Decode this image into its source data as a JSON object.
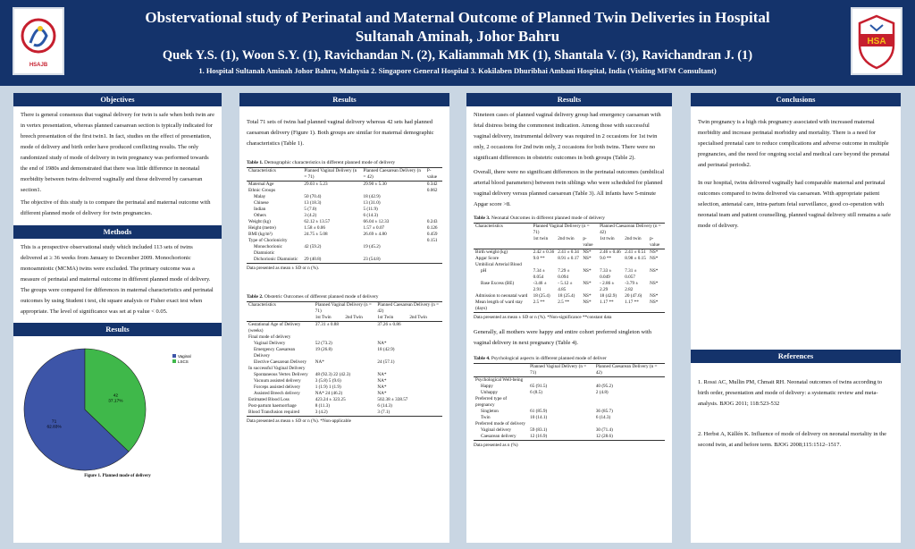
{
  "header": {
    "title_line1": "Obstervational study of Perinatal and Maternal Outcome of Planned Twin Deliveries in Hospital",
    "title_line2": "Sultanah Aminah, Johor Bahru",
    "authors": "Quek Y.S. (1), Woon S.Y. (1), Ravichandan N. (2), Kaliammah MK (1), Shantala V. (3), Ravichandran J. (1)",
    "affiliations": "1. Hospital Sultanah Aminah Johor Bahru, Malaysia   2. Singapore General Hospital   3. Kokilaben Dhuribhai Ambani Hospital, India (Visiting MFM Consultant)",
    "logo_left_text": "HSAJB",
    "logo_right_text": "HSA"
  },
  "objectives": {
    "heading": "Objectives",
    "para1": "There is general consensus that vaginal delivery for twin is safe when both twin are in vertex presentation, whereas planned caesarean section is typically indicated for breech presentation of the first twin1. In fact, studies on the effect of presentation, mode of delivery and birth order have produced conflicting results. The only randomized study of mode of delivery in twin pregnancy was performed towards the end of 1980s and demonstrated that there was little difference in neonatal morbidity between twins delivered vaginally and those delivered by caesarean section1.",
    "para2": "The objective of this study is to compare the perinatal and maternal outcome with different planned mode of delivery for twin pregnancies."
  },
  "methods": {
    "heading": "Methods",
    "para1": "This is a prospective observational study which included 113 sets of twins delivered at ≥ 36 weeks from January to December 2009. Monochorionic monoamniotic (MCMA) twins were excluded. The primary outcome was a measure of perinatal and maternal outcome in different planned mode of delivery.",
    "para2": "The groups were compared for differences in maternal characteristics and perinatal outcomes by using Student t test, chi square analysis or Fisher exact test when appropriate. The level of significance was set at p value < 0.05."
  },
  "results_left": {
    "heading": "Results",
    "figure_caption": "Figure 1. Planned mode of delivery",
    "legend": [
      "Vaginal",
      "LSCS"
    ]
  },
  "chart_data": {
    "type": "pie",
    "categories": [
      "Vaginal",
      "LSCS"
    ],
    "values": [
      71,
      42
    ],
    "labels": [
      "71\n62.83%",
      "42\n37.17%"
    ],
    "colors": [
      "#3d55a8",
      "#3fb84a"
    ]
  },
  "results1": {
    "heading": "Results",
    "intro": "Total 71 sets of twins had planned vaginal delivery whereas 42 sets had planned caesarean delivery (Figure 1). Both groups are similar for maternal demographic characteristics (Table 1).",
    "table1": {
      "caption_bold": "Table 1.",
      "caption": " Demographic characteristics in different planned mode of delivery",
      "head": [
        "Characteristics",
        "Planned Vaginal Delivery (n = 71)",
        "Planned Caesarean Delivery (n = 42)",
        "P-value"
      ],
      "rows": [
        [
          "Maternal Age",
          "29.03 ± 5.23",
          "29.90 ± 5.30",
          "0.342",
          false
        ],
        [
          "Ethnic Groups",
          "",
          "",
          "0.062",
          false
        ],
        [
          "Malay",
          "50 (70.4)",
          "18 (42.9)",
          "",
          true
        ],
        [
          "Chinese",
          "13 (18.3)",
          "13 (31.0)",
          "",
          true
        ],
        [
          "Indian",
          "5 (7.0)",
          "5 (11.9)",
          "",
          true
        ],
        [
          "Others",
          "3 (4.2)",
          "6 (14.3)",
          "",
          true
        ],
        [
          "Weight (kg)",
          "62.12 ± 13.57",
          "66.04 ± 12.33",
          "0.243",
          false
        ],
        [
          "Height (metre)",
          "1.58 ± 0.06",
          "1.57 ± 0.07",
          "0.126",
          false
        ],
        [
          "BMI (kg/m²)",
          "24.75 ± 5.08",
          "26.69 ± 4.80",
          "0.459",
          false
        ],
        [
          "Type of Chorionicity",
          "",
          "",
          "0.151",
          false
        ],
        [
          "Monochorionic Diamniotic",
          "42 (59.2)",
          "19 (45.2)",
          "",
          true
        ],
        [
          "Dichorionic Diamniotic",
          "29 (40.8)",
          "23 (54.8)",
          "",
          true
        ]
      ],
      "note": "Data presented as mean ± SD or n (%)."
    },
    "table2": {
      "caption_bold": "Table 2.",
      "caption": " Obstetric Outcomes of different planned mode of delivery",
      "head": [
        "Characteristics",
        "Planned Vaginal Delivery (n = 71)",
        "Planned Caesarean Delivery (n = 42)"
      ],
      "subhead": [
        "1st Twin",
        "2nd Twin",
        "1st Twin",
        "2nd Twin"
      ],
      "rows": [
        [
          "Gestational Age of Delivery (weeks)",
          "37.31 ± 0.88",
          "37.26 ± 0.86",
          false
        ],
        [
          "Final mode of delivery",
          "",
          "",
          false
        ],
        [
          "Vaginal Delivery",
          "52 (73.2)",
          "NA*",
          true
        ],
        [
          "Emergency Caesarean Delivery",
          "19 (26.8)",
          "18 (42.9)",
          true
        ],
        [
          "Elective Caesarean Delivery",
          "NA*",
          "24 (57.1)",
          true
        ],
        [
          "In successful Vaginal Delivery",
          "",
          "",
          false
        ],
        [
          "Spontaneous Vertex Delivery",
          "48 (92.3)     22 (42.3)",
          "NA*",
          true
        ],
        [
          "Vacuum assisted delivery",
          "3 (5.8)       5 (9.6)",
          "NA*",
          true
        ],
        [
          "Forceps assisted delivery",
          "1 (1.9)       1 (1.9)",
          "NA*",
          true
        ],
        [
          "Assisted Breech delivery",
          "NA*         24 (46.2)",
          "NA*",
          true
        ],
        [
          "Estimated Blood Loss",
          "423.24 ± 323.25",
          "502.38 ± 338.57",
          false
        ],
        [
          "Post-partum haemorrhage",
          "8 (11.3)",
          "6 (14.3)",
          false
        ],
        [
          "Blood Transfusion required",
          "3 (4.2)",
          "3 (7.1)",
          false
        ]
      ],
      "note": "Data presented as mean ± SD or n (%).      *Non-applicable"
    }
  },
  "results2": {
    "heading": "Results",
    "para1": "Nineteen cases of planned vaginal delivery group had emergency caesarean with fetal distress being the commonest indication. Among those with successful vaginal delivery, instrumental delivery was required in 2 occasions for 1st twin only, 2 occasions for 2nd twin only, 2 occasions for both twins. There were no significant differences in obstetric outcomes in both groups (Table 2).",
    "para2": "Overall, there were no significant differences in the perinatal outcomes (umbilical arterial blood parameters) between twin siblings who were scheduled for planned vaginal delivery versus planned caesarean (Table 3). All infants have 5-minute Apgar score >8.",
    "table3": {
      "caption_bold": "Table 3.",
      "caption": " Neonatal Outcomes in different planned mode of delivery",
      "head": [
        "Characteristics",
        "Planned Vaginal Delivery (n = 71)",
        "Planned Caesarean Delivery (n = 42)"
      ],
      "subhead": [
        "1st twin",
        "2nd twin",
        "p-value",
        "1st twin",
        "2nd twin",
        "p-value"
      ],
      "rows": [
        [
          "Birth weight (kg)",
          "2.42 ± 0.36",
          "2.41 ± 0.34",
          "NS*",
          "2.46 ± 0.46",
          "2.41 ± 0.51",
          "NS*",
          false
        ],
        [
          "Apgar Score",
          "9.0 **",
          "8.91 ± 0.17",
          "NS*",
          "9.0 **",
          "8.98 ± 0.15",
          "NS*",
          false
        ],
        [
          "Umbilical Arterial Blood",
          "",
          "",
          "",
          "",
          "",
          "",
          false
        ],
        [
          "pH",
          "7.34 ± 0.054",
          "7.29 ± 0.094",
          "NS*",
          "7.33 ± 0.049",
          "7.31 ± 0.057",
          "NS*",
          true
        ],
        [
          "Base Excess (BE)",
          "-3.46 ± 2.91",
          "- 5.12 ± 4.85",
          "NS*",
          "- 2.86 ± 2.29",
          "-3.79 ± 2.82",
          "NS*",
          true
        ],
        [
          "Admission to neonatal ward",
          "18 (25.4)",
          "18 (25.4)",
          "NS*",
          "18 (42.9)",
          "20 (47.6)",
          "NS*",
          false
        ],
        [
          "Mean length of ward stay (days)",
          "2.5 **",
          "2.5 **",
          "NS*",
          "1.17 **",
          "1.17 **",
          "NS*",
          false
        ]
      ],
      "note": "Data presented as mean ± SD or n (%).     *Non-significance                **constant data"
    },
    "para3": "Generally, all mothers were happy and entire cohort preferred singleton with vaginal delivery in next pregnancy (Table 4).",
    "table4": {
      "caption_bold": "Table 4.",
      "caption": " Psychological aspects in different planned mode of deliver",
      "head": [
        "",
        "Planned Vaginal Delivery (n = 71)",
        "Planned Caesarean Delivery (n = 42)"
      ],
      "rows": [
        [
          "Psychological Well-being",
          "",
          "",
          false
        ],
        [
          "Happy",
          "65 (91.5)",
          "40 (95.2)",
          true
        ],
        [
          "Unhappy",
          "6 (8.5)",
          "2 (4.8)",
          true
        ],
        [
          "Preferred type of pregnancy",
          "",
          "",
          false
        ],
        [
          "Singleton",
          "61 (85.9)",
          "36 (85.7)",
          true
        ],
        [
          "Twin",
          "10 (14.1)",
          "6 (14.3)",
          true
        ],
        [
          "Preferred mode of delivery",
          "",
          "",
          false
        ],
        [
          "Vaginal delivery",
          "59 (83.1)",
          "30 (71.4)",
          true
        ],
        [
          "Caesarean delivery",
          "12 (16.9)",
          "12 (28.6)",
          true
        ]
      ],
      "note": "Data presented as n (%)"
    }
  },
  "conclusions": {
    "heading": "Conclusions",
    "para1": "Twin pregnancy is a high risk pregnancy associated with increased maternal morbidity and increase perinatal morbidity and mortality. There is a need for specialised prenatal care to reduce complications and adverse outcome in multiple pregnancies, and the need for ongoing social and medical care beyond the prenatal and perinatal periods2.",
    "para2": "In our hospital, twins delivered vaginally had comparable maternal and perinatal outcomes compared to twins delivered via caesarean. With appropriate patient selection, antenatal care, intra-partum fetal surveillance, good co-operation with neonatal team and patient counselling, planned vaginal delivery still remains a safe mode of delivery."
  },
  "references": {
    "heading": "References",
    "ref1": "1. Rossi AC, Mullin PM, Chmait RH. Neonatal outcomes of twins according to birth order, presentation and mode of delivery: a systematic review and meta-analysis. BJOG 2011; 118:523-532",
    "ref2": "2. Herbst A, Källén K. Influence of mode of delivery on neonatal mortality in the second twin, at and before term. BJOG 2008;115:1512–1517."
  }
}
